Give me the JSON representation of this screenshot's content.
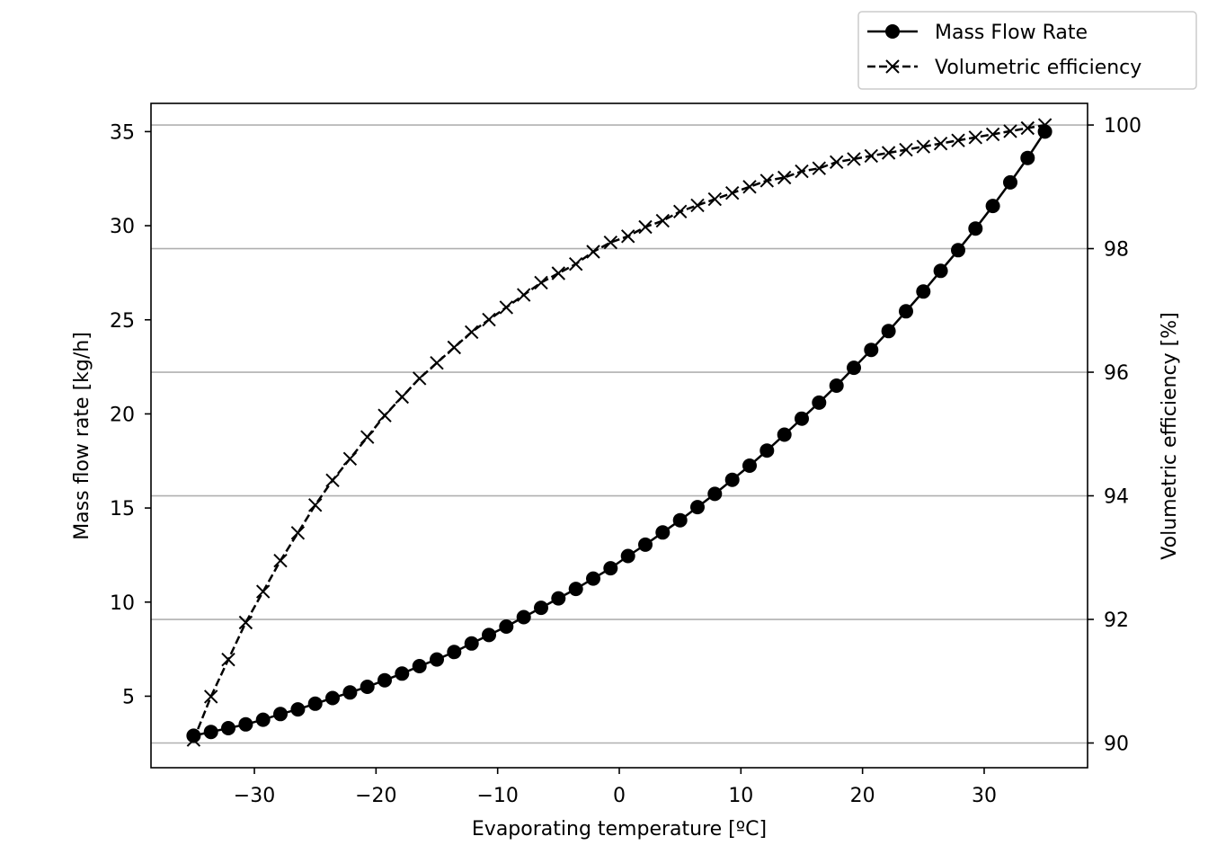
{
  "chart_data": {
    "type": "line",
    "xlabel": "Evaporating temperature [ºC]",
    "ylabel": "Mass flow rate [kg/h]",
    "y2label": "Volumetric efficiency [%]",
    "xlim": [
      -38.5,
      38.5
    ],
    "ylim": [
      1.2,
      36.5
    ],
    "y2lim": [
      89.6,
      100.35
    ],
    "xticks": [
      -30,
      -20,
      -10,
      0,
      10,
      20,
      30
    ],
    "xtick_labels": [
      "−30",
      "−20",
      "−10",
      "0",
      "10",
      "20",
      "30"
    ],
    "yticks": [
      5,
      10,
      15,
      20,
      25,
      30,
      35
    ],
    "y2ticks": [
      90,
      92,
      94,
      96,
      98,
      100
    ],
    "grid": "horizontal lines at right-axis ticks",
    "legend_placement": "above top-right, outside axes",
    "x_range": {
      "start": -35,
      "end": 35,
      "points": 50
    },
    "series": [
      {
        "name": "Mass Flow Rate",
        "axis": "left",
        "style": "solid",
        "marker": "circle",
        "color": "#000000",
        "values": [
          2.9,
          3.1,
          3.3,
          3.5,
          3.75,
          4.05,
          4.3,
          4.6,
          4.9,
          5.2,
          5.5,
          5.85,
          6.2,
          6.6,
          6.95,
          7.35,
          7.8,
          8.25,
          8.7,
          9.2,
          9.7,
          10.2,
          10.7,
          11.25,
          11.8,
          12.45,
          13.05,
          13.7,
          14.35,
          15.05,
          15.75,
          16.5,
          17.25,
          18.05,
          18.9,
          19.75,
          20.6,
          21.5,
          22.45,
          23.4,
          24.4,
          25.45,
          26.5,
          27.6,
          28.7,
          29.85,
          31.05,
          32.3,
          33.6,
          35.0
        ]
      },
      {
        "name": "Volumetric efficiency",
        "axis": "right",
        "style": "dashed",
        "marker": "x",
        "color": "#000000",
        "values": [
          90.05,
          90.75,
          91.35,
          91.95,
          92.45,
          92.95,
          93.4,
          93.85,
          94.25,
          94.6,
          94.95,
          95.3,
          95.6,
          95.9,
          96.15,
          96.4,
          96.65,
          96.85,
          97.05,
          97.25,
          97.45,
          97.6,
          97.75,
          97.95,
          98.1,
          98.2,
          98.35,
          98.45,
          98.6,
          98.7,
          98.8,
          98.9,
          99.0,
          99.1,
          99.15,
          99.25,
          99.3,
          99.4,
          99.45,
          99.5,
          99.55,
          99.6,
          99.65,
          99.7,
          99.75,
          99.8,
          99.85,
          99.9,
          99.95,
          100.0
        ]
      }
    ]
  }
}
